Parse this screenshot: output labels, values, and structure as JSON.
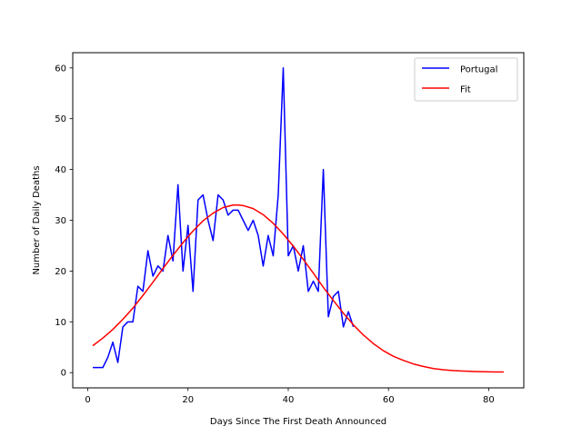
{
  "chart_data": {
    "type": "line",
    "xlabel": "Days Since The First Death Announced",
    "ylabel": "Number of Daily Deaths",
    "xlim": [
      -3,
      87
    ],
    "ylim": [
      -3,
      63
    ],
    "xticks": [
      0,
      20,
      40,
      60,
      80
    ],
    "yticks": [
      0,
      10,
      20,
      30,
      40,
      50,
      60
    ],
    "grid": false,
    "legend_position": "top-right",
    "series": [
      {
        "name": "Portugal",
        "color": "#0000ff",
        "x": [
          1,
          2,
          3,
          4,
          5,
          6,
          7,
          8,
          9,
          10,
          11,
          12,
          13,
          14,
          15,
          16,
          17,
          18,
          19,
          20,
          21,
          22,
          23,
          24,
          25,
          26,
          27,
          28,
          29,
          30,
          31,
          32,
          33,
          34,
          35,
          36,
          37,
          38,
          39,
          40,
          41,
          42,
          43,
          44,
          45,
          46,
          47,
          48,
          49,
          50,
          51,
          52,
          53
        ],
        "y": [
          1,
          1,
          1,
          3,
          6,
          2,
          9,
          10,
          10,
          17,
          16,
          24,
          19,
          21,
          20,
          27,
          22,
          37,
          20,
          29,
          16,
          34,
          35,
          30,
          26,
          35,
          34,
          31,
          32,
          32,
          30,
          28,
          30,
          27,
          21,
          27,
          23,
          35,
          60,
          23,
          25,
          20,
          25,
          16,
          18,
          16,
          40,
          11,
          15,
          16,
          9,
          12,
          9
        ]
      },
      {
        "name": "Fit",
        "color": "#ff0000",
        "x": [
          1,
          3,
          5,
          7,
          9,
          11,
          13,
          15,
          17,
          19,
          21,
          23,
          25,
          27,
          29,
          30,
          31,
          33,
          35,
          37,
          39,
          41,
          43,
          45,
          47,
          49,
          51,
          53,
          55,
          57,
          59,
          61,
          63,
          65,
          67,
          69,
          71,
          73,
          75,
          77,
          79,
          81,
          83
        ],
        "y": [
          5.3,
          6.8,
          8.5,
          10.5,
          12.7,
          15.2,
          17.8,
          20.5,
          23.1,
          25.6,
          27.9,
          29.9,
          31.4,
          32.5,
          33.0,
          33.0,
          32.9,
          32.3,
          31.1,
          29.4,
          27.3,
          24.9,
          22.3,
          19.6,
          16.8,
          14.2,
          11.7,
          9.4,
          7.4,
          5.7,
          4.3,
          3.2,
          2.4,
          1.7,
          1.2,
          0.8,
          0.55,
          0.4,
          0.3,
          0.22,
          0.17,
          0.14,
          0.12
        ]
      }
    ]
  }
}
